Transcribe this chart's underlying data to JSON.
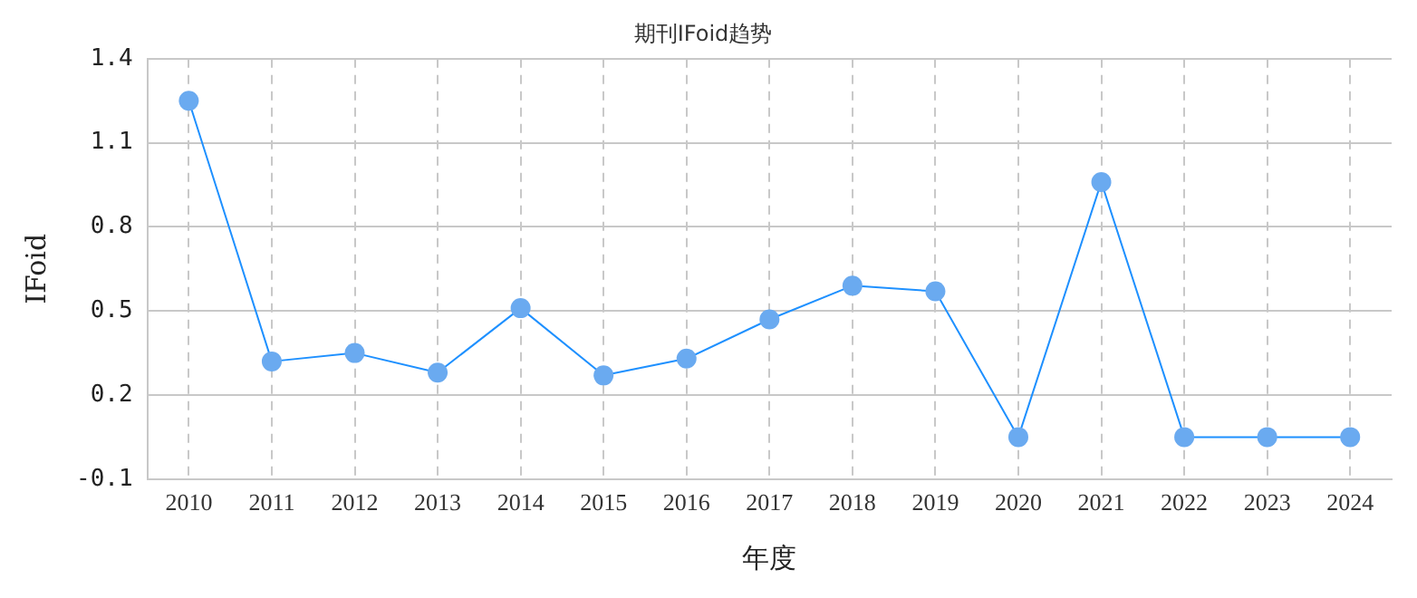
{
  "chart_data": {
    "type": "line",
    "title": "期刊IFoid趋势",
    "xlabel": "年度",
    "ylabel": "IFoid",
    "categories": [
      "2010",
      "2011",
      "2012",
      "2013",
      "2014",
      "2015",
      "2016",
      "2017",
      "2018",
      "2019",
      "2020",
      "2021",
      "2022",
      "2023",
      "2024"
    ],
    "series": [
      {
        "color": "#1e90ff",
        "values": [
          1.25,
          0.32,
          0.35,
          0.28,
          0.51,
          0.27,
          0.33,
          0.47,
          0.59,
          0.57,
          0.05,
          0.96,
          0.05,
          0.05,
          0.05
        ]
      }
    ],
    "ylim": [
      -0.1,
      1.4
    ],
    "yticks": [
      -0.1,
      0.2,
      0.5,
      0.8,
      1.1,
      1.4
    ],
    "grid": true,
    "marker": "circle",
    "line_style": "solid",
    "legend": false
  }
}
